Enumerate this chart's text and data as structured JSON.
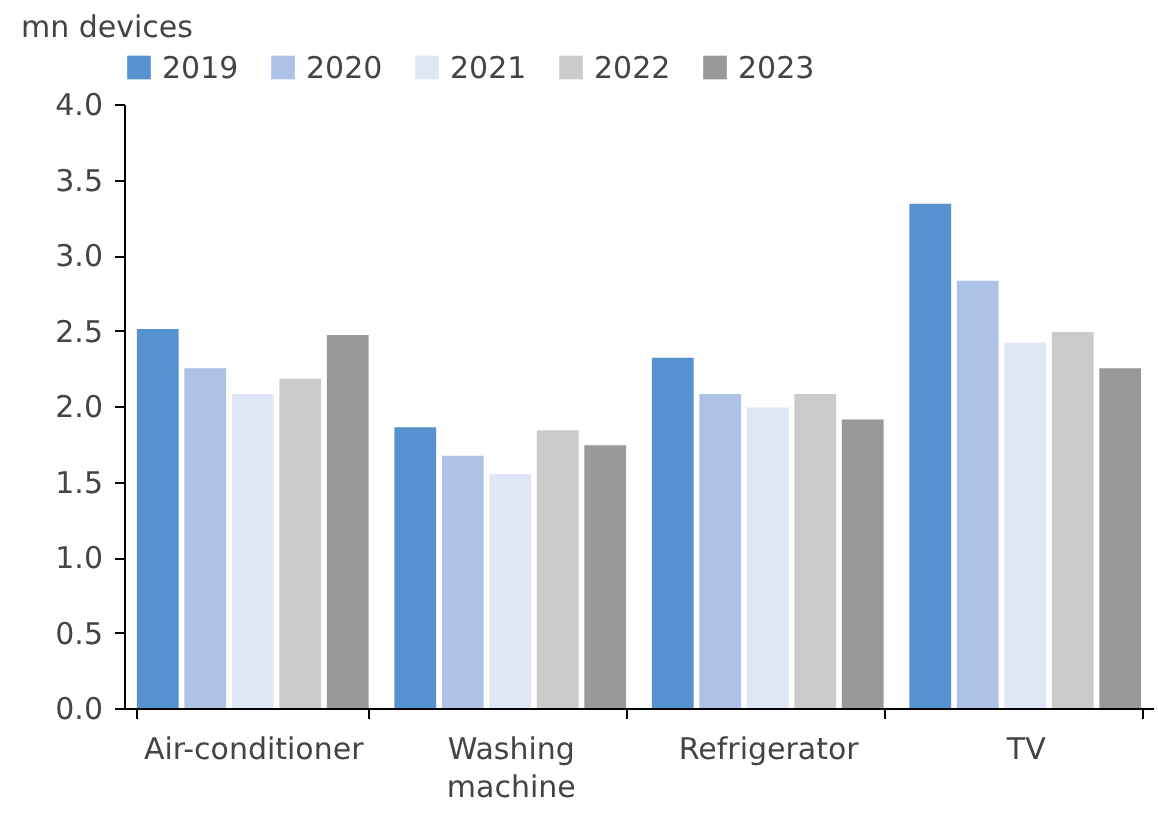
{
  "chart_data": {
    "type": "bar",
    "ylabel": "mn devices",
    "categories": [
      "Air-conditioner",
      "Washing machine",
      "Refrigerator",
      "TV"
    ],
    "series": [
      {
        "name": "2019",
        "color": "#5592cf",
        "values": [
          2.51,
          1.86,
          2.32,
          3.34
        ]
      },
      {
        "name": "2020",
        "color": "#adc2e6",
        "values": [
          2.25,
          1.67,
          2.08,
          2.83
        ]
      },
      {
        "name": "2021",
        "color": "#dfe7f6",
        "values": [
          2.08,
          1.55,
          1.99,
          2.42
        ]
      },
      {
        "name": "2022",
        "color": "#cbcbcb",
        "values": [
          2.18,
          1.84,
          2.08,
          2.49
        ]
      },
      {
        "name": "2023",
        "color": "#999999",
        "values": [
          2.47,
          1.74,
          1.91,
          2.25
        ]
      }
    ],
    "ylim": [
      0,
      4
    ],
    "yticks": [
      {
        "value": 0,
        "label": "0.0"
      },
      0.5,
      {
        "value": 1,
        "label": "1.0"
      },
      1.5,
      {
        "value": 2,
        "label": "2.0"
      },
      2.5,
      {
        "value": 3,
        "label": "3.0"
      },
      3.5,
      {
        "value": 4,
        "label": "4.0"
      }
    ],
    "grid": false,
    "legend": "top"
  }
}
